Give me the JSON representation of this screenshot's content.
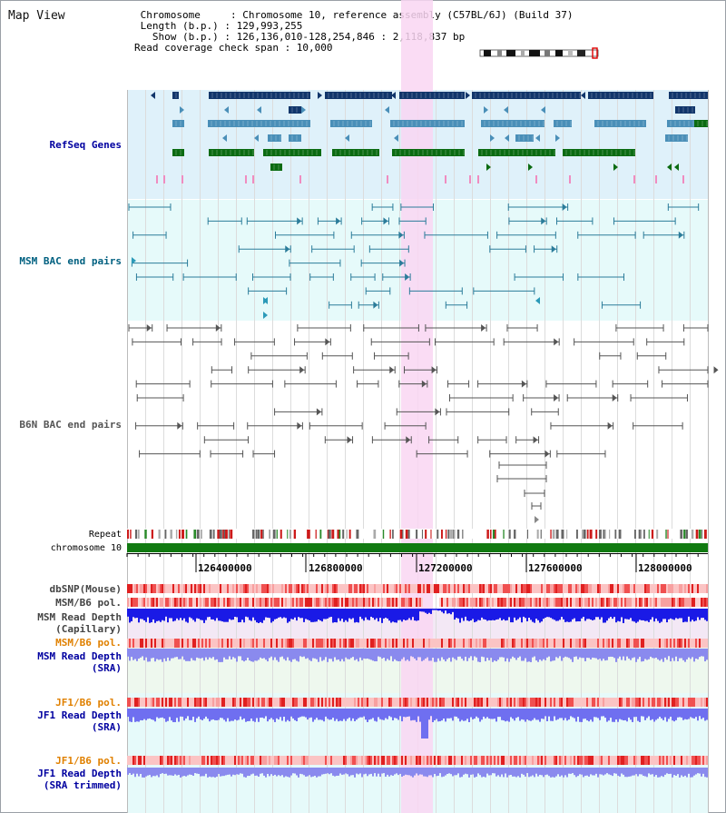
{
  "header": {
    "title": "Map View",
    "info_lines": [
      " Chromosome     : Chromosome 10, reference assembly (C57BL/6J) (Build 37)",
      " Length (b.p.) : 129,993,255",
      "   Show (b.p.) : 126,136,010-128,254,846 : 2,118,837 bp",
      "Read coverage check span : 10,000"
    ]
  },
  "tracks": {
    "refseq": "RefSeq Genes",
    "msm_bac": "MSM BAC end pairs",
    "b6n_bac": "B6N BAC end pairs",
    "repeat": "Repeat",
    "chromosome": "chromosome 10",
    "dbsnp": "dbSNP(Mouse)",
    "msm_b6_pol": "MSM/B6 pol.",
    "msm_depth_cap_1": "MSM Read Depth",
    "msm_depth_cap_2": "(Capillary)",
    "msm_b6_pol2": "MSM/B6 pol.",
    "msm_depth_sra_1": "MSM Read Depth",
    "msm_depth_sra_2": "(SRA)",
    "jf1_b6_pol": "JF1/B6 pol.",
    "jf1_depth_sra_1": "JF1 Read Depth",
    "jf1_depth_sra_2": "(SRA)",
    "jf1_b6_pol2": "JF1/B6 pol.",
    "jf1_depth_trim_1": "JF1 Read Depth",
    "jf1_depth_trim_2": "(SRA trimmed)"
  },
  "axis": {
    "ticks": [
      "126400000",
      "126800000",
      "127200000",
      "127600000",
      "128000000"
    ]
  },
  "colors": {
    "refseq_bg": "#dff1fa",
    "msm_bg": "#e6fafa",
    "highlight": "#f9d6f2",
    "label_blue": "#0000a0",
    "label_teal": "#006080",
    "label_orange": "#e08000",
    "gene_navy": "#12366b",
    "gene_blue": "#4a8fb8",
    "gene_green": "#0b6b12",
    "chrom_green": "#117a11"
  }
}
